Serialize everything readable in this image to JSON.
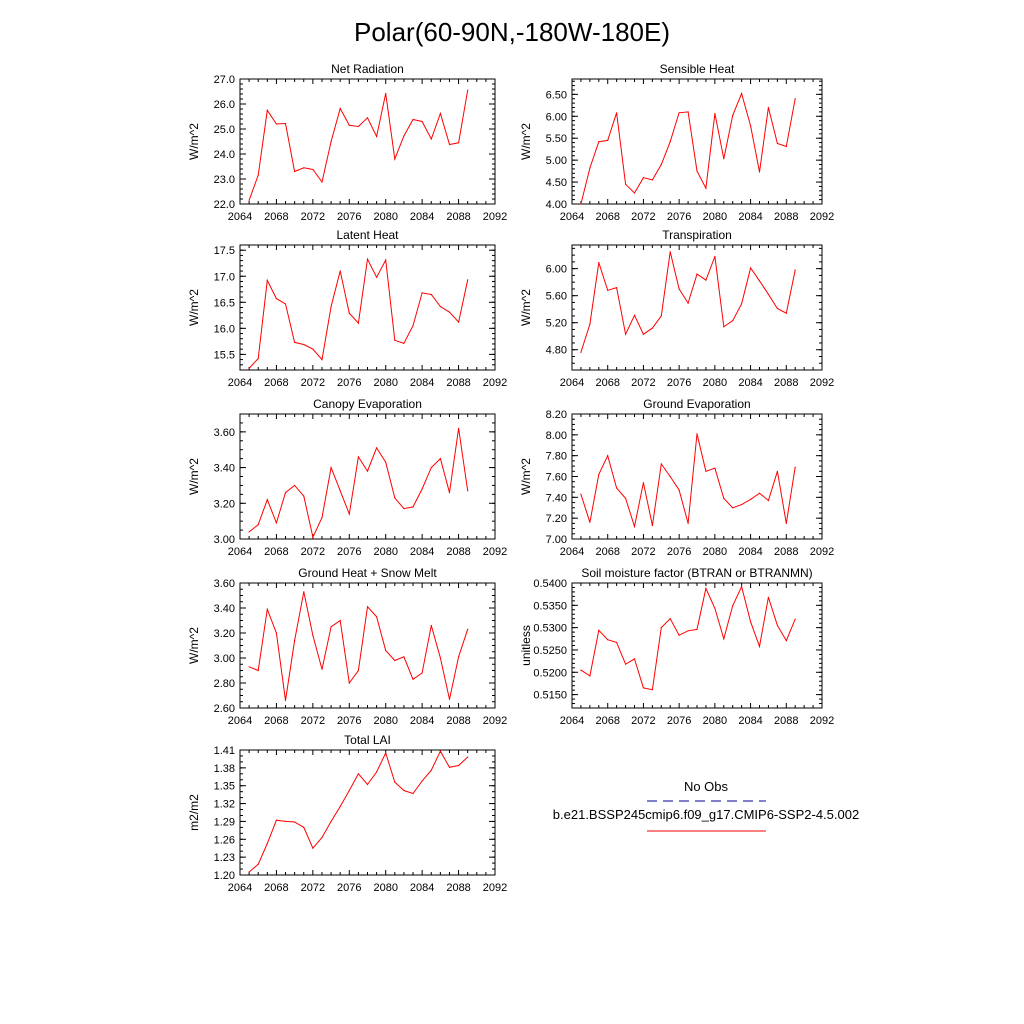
{
  "title": "Polar(60-90N,-180W-180E)",
  "legend": {
    "obs_label": "No Obs",
    "obs_color": "#3333aa",
    "case_label": "b.e21.BSSP245cmip6.f09_g17.CMIP6-SSP2-4.5.002",
    "case_color": "#ff0000"
  },
  "chart_data": [
    {
      "type": "line",
      "title": "Net Radiation",
      "ylabel": "W/m^2",
      "xlim": [
        2064,
        2092
      ],
      "xticks": [
        "2064",
        "2068",
        "2072",
        "2076",
        "2080",
        "2084",
        "2088",
        "2092"
      ],
      "ylim": [
        22.0,
        27.0
      ],
      "yticks": [
        "22.0",
        "23.0",
        "24.0",
        "25.0",
        "26.0",
        "27.0"
      ],
      "yminor": 0.2,
      "series": [
        {
          "name": "b.e21.BSSP245cmip6.f09_g17.CMIP6-SSP2-4.5.002",
          "x": [
            2065,
            2066,
            2067,
            2068,
            2069,
            2070,
            2071,
            2072,
            2073,
            2074,
            2075,
            2076,
            2077,
            2078,
            2079,
            2080,
            2081,
            2082,
            2083,
            2084,
            2085,
            2086,
            2087,
            2088,
            2089
          ],
          "values": [
            22.15,
            23.15,
            25.75,
            25.2,
            25.22,
            23.3,
            23.45,
            23.38,
            22.88,
            24.5,
            25.82,
            25.15,
            25.1,
            25.45,
            24.7,
            26.42,
            23.8,
            24.72,
            25.38,
            25.3,
            24.6,
            25.62,
            24.38,
            24.45,
            26.55
          ]
        }
      ]
    },
    {
      "type": "line",
      "title": "Sensible Heat",
      "ylabel": "W/m^2",
      "xlim": [
        2064,
        2092
      ],
      "xticks": [
        "2064",
        "2068",
        "2072",
        "2076",
        "2080",
        "2084",
        "2088",
        "2092"
      ],
      "ylim": [
        4.0,
        6.85
      ],
      "yticks": [
        "4.00",
        "4.50",
        "5.00",
        "5.50",
        "6.00",
        "6.50"
      ],
      "yminor": 0.1,
      "series": [
        {
          "name": "b.e21.BSSP245cmip6.f09_g17.CMIP6-SSP2-4.5.002",
          "x": [
            2065,
            2066,
            2067,
            2068,
            2069,
            2070,
            2071,
            2072,
            2073,
            2074,
            2075,
            2076,
            2077,
            2078,
            2079,
            2080,
            2081,
            2082,
            2083,
            2084,
            2085,
            2086,
            2087,
            2088,
            2089
          ],
          "values": [
            4.0,
            4.82,
            5.42,
            5.45,
            6.08,
            4.45,
            4.25,
            4.6,
            4.55,
            4.9,
            5.42,
            6.08,
            6.1,
            4.75,
            4.36,
            6.06,
            5.03,
            6.02,
            6.52,
            5.78,
            4.73,
            6.2,
            5.38,
            5.31,
            6.4
          ]
        }
      ]
    },
    {
      "type": "line",
      "title": "Latent Heat",
      "ylabel": "W/m^2",
      "xlim": [
        2064,
        2092
      ],
      "xticks": [
        "2064",
        "2068",
        "2072",
        "2076",
        "2080",
        "2084",
        "2088",
        "2092"
      ],
      "ylim": [
        15.2,
        17.6
      ],
      "yticks": [
        "15.5",
        "16.0",
        "16.5",
        "17.0",
        "17.5"
      ],
      "yminor": 0.1,
      "series": [
        {
          "name": "b.e21.BSSP245cmip6.f09_g17.CMIP6-SSP2-4.5.002",
          "x": [
            2065,
            2066,
            2067,
            2068,
            2069,
            2070,
            2071,
            2072,
            2073,
            2074,
            2075,
            2076,
            2077,
            2078,
            2079,
            2080,
            2081,
            2082,
            2083,
            2084,
            2085,
            2086,
            2087,
            2088,
            2089
          ],
          "values": [
            15.23,
            15.42,
            16.92,
            16.57,
            16.47,
            15.73,
            15.69,
            15.6,
            15.4,
            16.42,
            17.1,
            16.29,
            16.1,
            17.33,
            16.98,
            17.31,
            15.77,
            15.71,
            16.05,
            16.68,
            16.65,
            16.42,
            16.31,
            16.12,
            16.93
          ]
        }
      ]
    },
    {
      "type": "line",
      "title": "Transpiration",
      "ylabel": "W/m^2",
      "xlim": [
        2064,
        2092
      ],
      "xticks": [
        "2064",
        "2068",
        "2072",
        "2076",
        "2080",
        "2084",
        "2088",
        "2092"
      ],
      "ylim": [
        4.5,
        6.35
      ],
      "yticks": [
        "4.80",
        "5.20",
        "5.60",
        "6.00"
      ],
      "yminor": 0.1,
      "series": [
        {
          "name": "b.e21.BSSP245cmip6.f09_g17.CMIP6-SSP2-4.5.002",
          "x": [
            2065,
            2066,
            2067,
            2068,
            2069,
            2070,
            2071,
            2072,
            2073,
            2074,
            2075,
            2076,
            2077,
            2078,
            2079,
            2080,
            2081,
            2082,
            2083,
            2084,
            2085,
            2086,
            2087,
            2088,
            2089
          ],
          "values": [
            4.76,
            5.18,
            6.09,
            5.68,
            5.72,
            5.03,
            5.31,
            5.03,
            5.12,
            5.3,
            6.25,
            5.7,
            5.49,
            5.92,
            5.83,
            6.18,
            5.14,
            5.23,
            5.48,
            6.01,
            5.82,
            5.62,
            5.41,
            5.34,
            5.98
          ]
        }
      ]
    },
    {
      "type": "line",
      "title": "Canopy Evaporation",
      "ylabel": "W/m^2",
      "xlim": [
        2064,
        2092
      ],
      "xticks": [
        "2064",
        "2068",
        "2072",
        "2076",
        "2080",
        "2084",
        "2088",
        "2092"
      ],
      "ylim": [
        3.0,
        3.7
      ],
      "yticks": [
        "3.00",
        "3.20",
        "3.40",
        "3.60"
      ],
      "yminor": 0.05,
      "series": [
        {
          "name": "b.e21.BSSP245cmip6.f09_g17.CMIP6-SSP2-4.5.002",
          "x": [
            2065,
            2066,
            2067,
            2068,
            2069,
            2070,
            2071,
            2072,
            2073,
            2074,
            2075,
            2076,
            2077,
            2078,
            2079,
            2080,
            2081,
            2082,
            2083,
            2084,
            2085,
            2086,
            2087,
            2088,
            2089
          ],
          "values": [
            3.04,
            3.08,
            3.22,
            3.09,
            3.26,
            3.3,
            3.24,
            3.01,
            3.12,
            3.4,
            3.27,
            3.14,
            3.46,
            3.38,
            3.51,
            3.43,
            3.23,
            3.17,
            3.18,
            3.28,
            3.4,
            3.45,
            3.26,
            3.62,
            3.27
          ]
        }
      ]
    },
    {
      "type": "line",
      "title": "Ground Evaporation",
      "ylabel": "W/m^2",
      "xlim": [
        2064,
        2092
      ],
      "xticks": [
        "2064",
        "2068",
        "2072",
        "2076",
        "2080",
        "2084",
        "2088",
        "2092"
      ],
      "ylim": [
        7.0,
        8.2
      ],
      "yticks": [
        "7.00",
        "7.20",
        "7.40",
        "7.60",
        "7.80",
        "8.00",
        "8.20"
      ],
      "yminor": 0.05,
      "series": [
        {
          "name": "b.e21.BSSP245cmip6.f09_g17.CMIP6-SSP2-4.5.002",
          "x": [
            2065,
            2066,
            2067,
            2068,
            2069,
            2070,
            2071,
            2072,
            2073,
            2074,
            2075,
            2076,
            2077,
            2078,
            2079,
            2080,
            2081,
            2082,
            2083,
            2084,
            2085,
            2086,
            2087,
            2088,
            2089
          ],
          "values": [
            7.43,
            7.16,
            7.62,
            7.8,
            7.49,
            7.39,
            7.12,
            7.54,
            7.13,
            7.72,
            7.6,
            7.47,
            7.15,
            8.01,
            7.65,
            7.68,
            7.39,
            7.3,
            7.33,
            7.38,
            7.44,
            7.37,
            7.65,
            7.15,
            7.69
          ]
        }
      ]
    },
    {
      "type": "line",
      "title": "Ground Heat + Snow Melt",
      "ylabel": "W/m^2",
      "xlim": [
        2064,
        2092
      ],
      "xticks": [
        "2064",
        "2068",
        "2072",
        "2076",
        "2080",
        "2084",
        "2088",
        "2092"
      ],
      "ylim": [
        2.6,
        3.6
      ],
      "yticks": [
        "2.60",
        "2.80",
        "3.00",
        "3.20",
        "3.40",
        "3.60"
      ],
      "yminor": 0.05,
      "series": [
        {
          "name": "b.e21.BSSP245cmip6.f09_g17.CMIP6-SSP2-4.5.002",
          "x": [
            2065,
            2066,
            2067,
            2068,
            2069,
            2070,
            2071,
            2072,
            2073,
            2074,
            2075,
            2076,
            2077,
            2078,
            2079,
            2080,
            2081,
            2082,
            2083,
            2084,
            2085,
            2086,
            2087,
            2088,
            2089
          ],
          "values": [
            2.93,
            2.9,
            3.39,
            3.2,
            2.66,
            3.14,
            3.53,
            3.18,
            2.91,
            3.25,
            3.3,
            2.8,
            2.9,
            3.41,
            3.33,
            3.06,
            2.98,
            3.01,
            2.83,
            2.88,
            3.26,
            3.0,
            2.67,
            3.01,
            3.23
          ]
        }
      ]
    },
    {
      "type": "line",
      "title": "Soil moisture factor (BTRAN or BTRANMN)",
      "ylabel": "unitless",
      "xlim": [
        2064,
        2092
      ],
      "xticks": [
        "2064",
        "2068",
        "2072",
        "2076",
        "2080",
        "2084",
        "2088",
        "2092"
      ],
      "ylim": [
        0.512,
        0.54
      ],
      "yticks": [
        "0.5150",
        "0.5200",
        "0.5250",
        "0.5300",
        "0.5350",
        "0.5400"
      ],
      "yminor": 0.001,
      "series": [
        {
          "name": "b.e21.BSSP245cmip6.f09_g17.CMIP6-SSP2-4.5.002",
          "x": [
            2065,
            2066,
            2067,
            2068,
            2069,
            2070,
            2071,
            2072,
            2073,
            2074,
            2075,
            2076,
            2077,
            2078,
            2079,
            2080,
            2081,
            2082,
            2083,
            2084,
            2085,
            2086,
            2087,
            2088,
            2089
          ],
          "values": [
            0.5205,
            0.5192,
            0.5294,
            0.5273,
            0.5267,
            0.5218,
            0.523,
            0.5165,
            0.5161,
            0.53,
            0.532,
            0.5283,
            0.5293,
            0.5296,
            0.5388,
            0.5343,
            0.5275,
            0.5349,
            0.5392,
            0.5313,
            0.5258,
            0.5368,
            0.5305,
            0.5271,
            0.5319
          ]
        }
      ]
    },
    {
      "type": "line",
      "title": "Total LAI",
      "ylabel": "m2/m2",
      "xlim": [
        2064,
        2092
      ],
      "xticks": [
        "2064",
        "2068",
        "2072",
        "2076",
        "2080",
        "2084",
        "2088",
        "2092"
      ],
      "ylim": [
        1.2,
        1.41
      ],
      "yticks": [
        "1.20",
        "1.23",
        "1.26",
        "1.29",
        "1.32",
        "1.35",
        "1.38",
        "1.41"
      ],
      "yminor": 0.01,
      "series": [
        {
          "name": "b.e21.BSSP245cmip6.f09_g17.CMIP6-SSP2-4.5.002",
          "x": [
            2065,
            2066,
            2067,
            2068,
            2069,
            2070,
            2071,
            2072,
            2073,
            2074,
            2075,
            2076,
            2077,
            2078,
            2079,
            2080,
            2081,
            2082,
            2083,
            2084,
            2085,
            2086,
            2087,
            2088,
            2089
          ],
          "values": [
            1.205,
            1.218,
            1.253,
            1.292,
            1.29,
            1.289,
            1.28,
            1.245,
            1.263,
            1.29,
            1.315,
            1.342,
            1.37,
            1.352,
            1.373,
            1.405,
            1.356,
            1.342,
            1.337,
            1.358,
            1.376,
            1.408,
            1.381,
            1.384,
            1.398
          ]
        }
      ]
    }
  ]
}
